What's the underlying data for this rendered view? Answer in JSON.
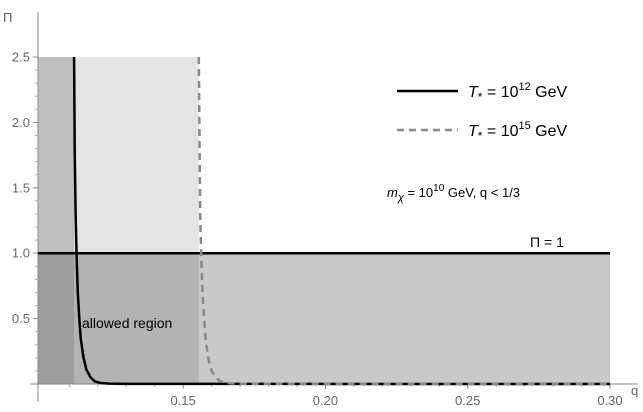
{
  "chart_data": {
    "type": "line",
    "title": "",
    "xlabel": "q",
    "ylabel": "Π",
    "xlim": [
      0.099,
      0.3
    ],
    "ylim": [
      0,
      2.5
    ],
    "xticks": [
      {
        "value": 0.15,
        "label": "0.15"
      },
      {
        "value": 0.2,
        "label": "0.20"
      },
      {
        "value": 0.25,
        "label": "0.25"
      },
      {
        "value": 0.3,
        "label": "0.30"
      }
    ],
    "yticks": [
      {
        "value": 0.5,
        "label": "0.5"
      },
      {
        "value": 1.0,
        "label": "1.0"
      },
      {
        "value": 1.5,
        "label": "1.5"
      },
      {
        "value": 2.0,
        "label": "2.0"
      },
      {
        "value": 2.5,
        "label": "2.5"
      }
    ],
    "series": [
      {
        "name_prefix": "T",
        "name_sub": "*",
        "name_mid": " = 10",
        "name_sup": "12",
        "name_suffix": " GeV",
        "style": "solid",
        "color": "#000000",
        "x": [
          0.1117,
          0.1119,
          0.1122,
          0.1126,
          0.113,
          0.1135,
          0.114,
          0.115,
          0.116,
          0.1175,
          0.119,
          0.121,
          0.124,
          0.13,
          0.3
        ],
        "y": [
          2.5,
          1.8,
          1.3,
          0.95,
          0.7,
          0.5,
          0.35,
          0.2,
          0.11,
          0.05,
          0.02,
          0.008,
          0.003,
          0.0005,
          0.0
        ]
      },
      {
        "name_prefix": "T",
        "name_sub": "*",
        "name_mid": " = 10",
        "name_sup": "15",
        "name_suffix": " GeV",
        "style": "dashed",
        "color": "#888888",
        "x": [
          0.1555,
          0.1558,
          0.156,
          0.1564,
          0.1568,
          0.1575,
          0.158,
          0.159,
          0.16,
          0.1615,
          0.163,
          0.166,
          0.17,
          0.3
        ],
        "y": [
          2.5,
          1.8,
          1.3,
          0.95,
          0.7,
          0.45,
          0.32,
          0.18,
          0.1,
          0.05,
          0.02,
          0.006,
          0.002,
          0.0
        ]
      }
    ],
    "reference_line": {
      "y": 1.0,
      "label": "Π = 1"
    },
    "regions": [
      {
        "x0": 0.099,
        "x1": 0.1117,
        "y0": 0,
        "y1": 2.5,
        "color": "#bfbfbf"
      },
      {
        "x0": 0.1117,
        "x1": 0.1555,
        "y0": 0,
        "y1": 2.5,
        "color": "#e4e4e4"
      },
      {
        "x0": 0.099,
        "x1": 0.3,
        "y0": 0,
        "y1": 1.0,
        "color": "#c9c9c9"
      },
      {
        "x0": 0.099,
        "x1": 0.1117,
        "y0": 0,
        "y1": 1.0,
        "color": "#9e9e9e"
      },
      {
        "x0": 0.1117,
        "x1": 0.1555,
        "y0": 0,
        "y1": 1.0,
        "color": "#b3b3b3"
      }
    ],
    "annotations": {
      "allowed_region": "allowed region",
      "mass_prefix": "m",
      "mass_sub": "χ",
      "mass_mid": " = 10",
      "mass_sup": "10",
      "mass_suffix": " GeV, q < 1/3"
    },
    "legend_position": "top-right",
    "grid": false
  }
}
